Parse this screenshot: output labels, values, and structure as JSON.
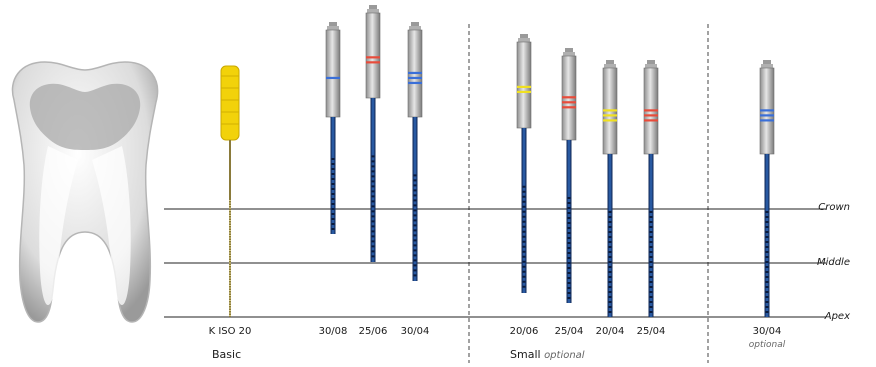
{
  "colors": {
    "rule": "#222222",
    "shaft": "#1c3f7a",
    "shaft_hi": "#2e66b5",
    "handle": "#bfbfbf",
    "k_file_handle": "#f2d20a",
    "ring_blue": "#3a6fd8",
    "ring_red": "#e84b3a",
    "ring_yellow": "#f0e020"
  },
  "levels": [
    {
      "label": "Crown"
    },
    {
      "label": "Middle"
    },
    {
      "label": "Apex"
    }
  ],
  "instruments": [
    {
      "label": "K ISO 20",
      "kind": "k-file",
      "ring_color": "",
      "rings": 0,
      "note": ""
    },
    {
      "label": "30/08",
      "kind": "rotary",
      "ring_color": "#3a6fd8",
      "rings": 1,
      "note": ""
    },
    {
      "label": "25/06",
      "kind": "rotary",
      "ring_color": "#e84b3a",
      "rings": 2,
      "note": ""
    },
    {
      "label": "30/04",
      "kind": "rotary",
      "ring_color": "#3a6fd8",
      "rings": 3,
      "note": ""
    },
    {
      "label": "20/06",
      "kind": "rotary",
      "ring_color": "#f0e020",
      "rings": 2,
      "note": ""
    },
    {
      "label": "25/04",
      "kind": "rotary",
      "ring_color": "#e84b3a",
      "rings": 3,
      "note": ""
    },
    {
      "label": "20/04",
      "kind": "rotary",
      "ring_color": "#f0e020",
      "rings": 3,
      "note": ""
    },
    {
      "label": "25/04",
      "kind": "rotary",
      "ring_color": "#e84b3a",
      "rings": 3,
      "note": ""
    },
    {
      "label": "30/04",
      "kind": "rotary",
      "ring_color": "#3a6fd8",
      "rings": 3,
      "note": "optional"
    }
  ],
  "groups": [
    {
      "name": "Basic",
      "suffix": ""
    },
    {
      "name": "Small",
      "suffix": "optional"
    }
  ]
}
